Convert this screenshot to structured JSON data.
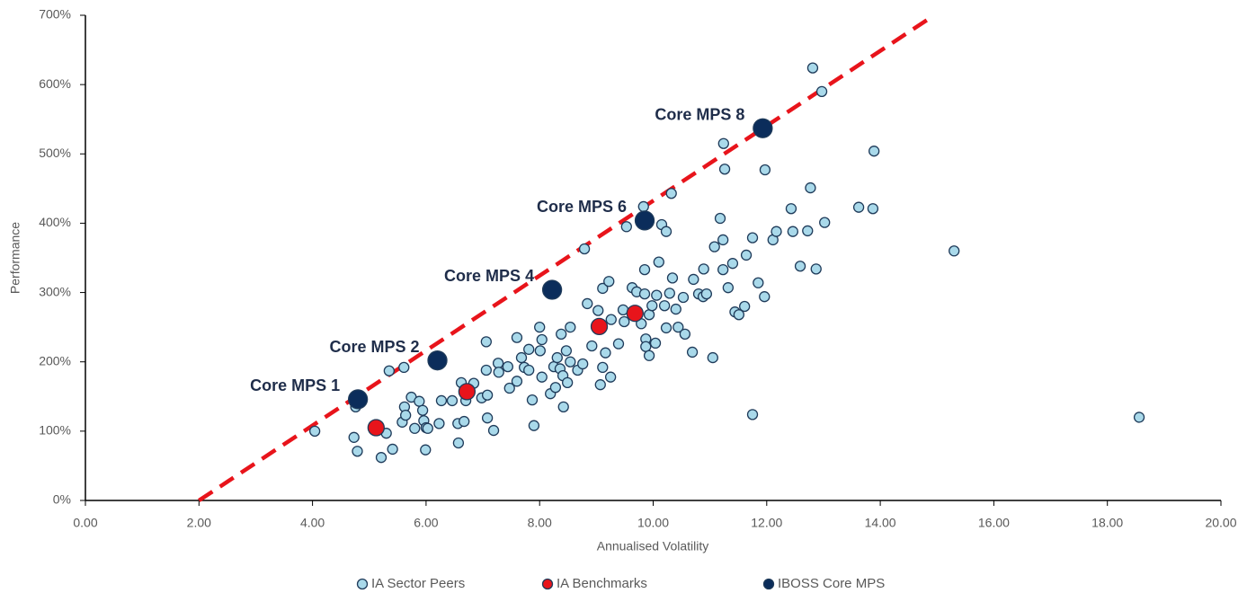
{
  "chart_data": {
    "type": "scatter",
    "x_label": "Annualised Volatility",
    "y_label": "Performance",
    "xlim": [
      0,
      20
    ],
    "ylim": [
      0,
      700
    ],
    "xticks": [
      {
        "value": 0,
        "label": "0.00"
      },
      {
        "value": 2,
        "label": "2.00"
      },
      {
        "value": 4,
        "label": "4.00"
      },
      {
        "value": 6,
        "label": "6.00"
      },
      {
        "value": 8,
        "label": "8.00"
      },
      {
        "value": 10,
        "label": "10.00"
      },
      {
        "value": 12,
        "label": "12.00"
      },
      {
        "value": 14,
        "label": "14.00"
      },
      {
        "value": 16,
        "label": "16.00"
      },
      {
        "value": 18,
        "label": "18.00"
      },
      {
        "value": 20,
        "label": "20.00"
      }
    ],
    "yticks": [
      {
        "value": 0,
        "label": "0%"
      },
      {
        "value": 100,
        "label": "100%"
      },
      {
        "value": 200,
        "label": "200%"
      },
      {
        "value": 300,
        "label": "300%"
      },
      {
        "value": 400,
        "label": "400%"
      },
      {
        "value": 500,
        "label": "500%"
      },
      {
        "value": 600,
        "label": "600%"
      },
      {
        "value": 700,
        "label": "700%"
      }
    ],
    "grid": false,
    "reference_line": {
      "x": [
        2.0,
        14.95
      ],
      "y": [
        0,
        700
      ],
      "color": "#e8141b"
    },
    "series": [
      {
        "name": "IA Sector Peers",
        "color": "#a9d9ea",
        "x": [
          4.04,
          4.73,
          4.79,
          4.76,
          5.21,
          5.3,
          5.41,
          5.35,
          5.61,
          5.58,
          5.62,
          5.64,
          5.74,
          5.8,
          5.88,
          5.94,
          5.96,
          5.99,
          6.0,
          6.03,
          6.23,
          6.27,
          6.46,
          6.56,
          6.57,
          6.62,
          6.67,
          6.7,
          6.84,
          6.98,
          7.06,
          7.08,
          7.06,
          7.08,
          7.19,
          7.27,
          7.28,
          7.44,
          7.47,
          7.6,
          7.6,
          7.68,
          7.73,
          7.81,
          7.81,
          7.87,
          7.9,
          8.0,
          8.01,
          8.04,
          8.04,
          8.19,
          8.25,
          8.28,
          8.31,
          8.36,
          8.38,
          8.41,
          8.42,
          8.47,
          8.49,
          8.54,
          8.54,
          8.67,
          8.76,
          8.79,
          8.84,
          8.92,
          9.03,
          9.07,
          9.11,
          9.11,
          9.16,
          9.22,
          9.25,
          9.26,
          9.39,
          9.47,
          9.49,
          9.53,
          9.63,
          9.71,
          9.79,
          9.83,
          9.85,
          9.85,
          9.87,
          9.87,
          9.93,
          9.93,
          9.98,
          10.04,
          10.06,
          10.1,
          10.15,
          10.2,
          10.23,
          10.23,
          10.29,
          10.32,
          10.34,
          10.4,
          10.44,
          10.53,
          10.56,
          10.69,
          10.71,
          10.8,
          10.88,
          10.89,
          10.94,
          11.05,
          11.08,
          11.18,
          11.23,
          11.23,
          11.24,
          11.26,
          11.32,
          11.4,
          11.44,
          11.51,
          11.61,
          11.64,
          11.75,
          11.75,
          11.85,
          11.96,
          11.97,
          12.11,
          12.17,
          12.43,
          12.46,
          12.59,
          12.72,
          12.77,
          12.81,
          12.87,
          12.97,
          13.02,
          13.62,
          13.87,
          13.89,
          15.3,
          18.56
        ],
        "values": [
          100,
          91,
          71,
          135,
          62,
          97,
          74,
          187,
          192,
          113,
          135,
          123,
          149,
          104,
          143,
          130,
          115,
          73,
          105,
          104,
          111,
          144,
          144,
          111,
          83,
          170,
          114,
          144,
          169,
          148,
          188,
          152,
          229,
          119,
          101,
          198,
          185,
          193,
          162,
          235,
          172,
          206,
          192,
          218,
          188,
          145,
          108,
          250,
          216,
          232,
          178,
          154,
          193,
          163,
          206,
          190,
          240,
          180,
          135,
          216,
          170,
          250,
          200,
          188,
          197,
          363,
          284,
          223,
          274,
          167,
          306,
          192,
          213,
          316,
          178,
          261,
          226,
          275,
          258,
          395,
          307,
          301,
          255,
          424,
          333,
          298,
          233,
          222,
          209,
          268,
          281,
          227,
          296,
          344,
          398,
          281,
          388,
          249,
          299,
          443,
          321,
          276,
          250,
          293,
          240,
          214,
          319,
          298,
          294,
          334,
          298,
          206,
          366,
          407,
          376,
          333,
          515,
          478,
          307,
          342,
          272,
          268,
          280,
          354,
          379,
          124,
          314,
          294,
          477,
          376,
          388,
          421,
          388,
          338,
          389,
          451,
          624,
          334,
          590,
          401,
          423,
          421,
          504,
          360,
          120
        ]
      },
      {
        "name": "IA Benchmarks",
        "color": "#e8141b",
        "x": [
          5.12,
          6.72,
          9.05,
          9.68
        ],
        "values": [
          105,
          157,
          251,
          270
        ]
      },
      {
        "name": "IBOSS Core MPS",
        "color": "#0b2d5b",
        "x": [
          4.8,
          6.2,
          8.22,
          9.85,
          11.93
        ],
        "values": [
          146,
          202,
          304,
          404,
          537
        ],
        "labels": [
          "Core MPS 1",
          "Core MPS 2",
          "Core MPS 4",
          "Core MPS 6",
          "Core MPS 8"
        ]
      }
    ]
  }
}
